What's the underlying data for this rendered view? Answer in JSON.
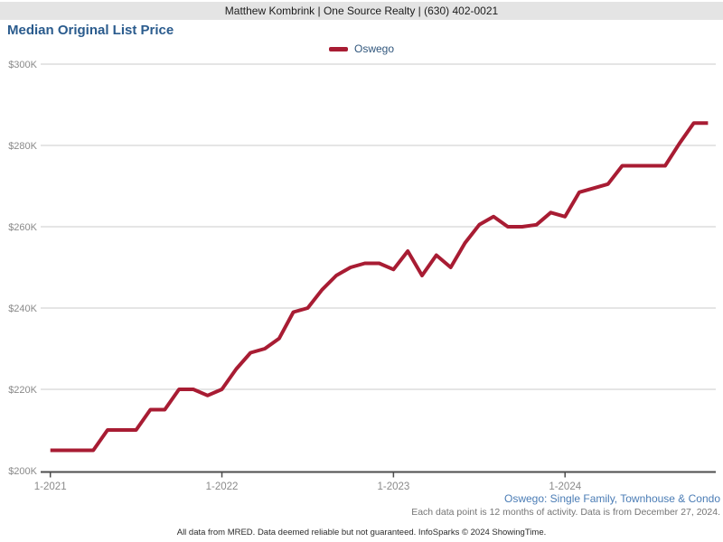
{
  "header": {
    "agent_line": "Matthew Kombrink | One Source Realty | (630) 402-0021"
  },
  "title": "Median Original List Price",
  "legend": {
    "label": "Oswego"
  },
  "footer": {
    "series_caption": "Oswego: Single Family, Townhouse & Condo",
    "data_note": "Each data point is 12 months of activity. Data is from December 27, 2024.",
    "disclaimer": "All data from MRED. Data deemed reliable but not guaranteed. InfoSparks © 2024 ShowingTime."
  },
  "colors": {
    "line": "#a81c33",
    "gridline": "#cbcbcb",
    "axis": "#4d4d4d",
    "axis_text": "#8a8a8a",
    "title_text": "#2a5b8d",
    "caption_link": "#4a7cb5",
    "header_bg": "#e4e4e4"
  },
  "chart_data": {
    "type": "line",
    "title": "Median Original List Price",
    "unit": "USD thousands",
    "start_month": "1-2021",
    "end_month": "11-2024",
    "frequency": "monthly",
    "grid": "horizontal",
    "legend_position": "top-center",
    "ylim_thousands": [
      200,
      300
    ],
    "y_ticks": [
      {
        "label": "$200K",
        "value_thousands": 200
      },
      {
        "label": "$220K",
        "value_thousands": 220
      },
      {
        "label": "$240K",
        "value_thousands": 240
      },
      {
        "label": "$260K",
        "value_thousands": 260
      },
      {
        "label": "$280K",
        "value_thousands": 280
      },
      {
        "label": "$300K",
        "value_thousands": 300
      }
    ],
    "x_ticks": [
      {
        "label": "1-2021",
        "month_index": 0
      },
      {
        "label": "1-2022",
        "month_index": 12
      },
      {
        "label": "1-2023",
        "month_index": 24
      },
      {
        "label": "1-2024",
        "month_index": 36
      }
    ],
    "series": [
      {
        "name": "Oswego",
        "color": "#a81c33",
        "values_thousands": [
          205,
          205,
          205,
          205,
          210,
          210,
          210,
          215,
          215,
          220,
          220,
          218.5,
          220,
          225,
          229,
          230,
          232.5,
          239,
          240,
          244.5,
          248,
          250,
          251,
          251,
          249.5,
          254,
          248,
          253,
          250,
          256,
          260.5,
          262.5,
          260,
          260,
          260.5,
          263.5,
          262.5,
          268.5,
          269.5,
          270.5,
          275,
          275,
          275,
          275,
          280.5,
          285.5,
          285.5
        ]
      }
    ]
  }
}
